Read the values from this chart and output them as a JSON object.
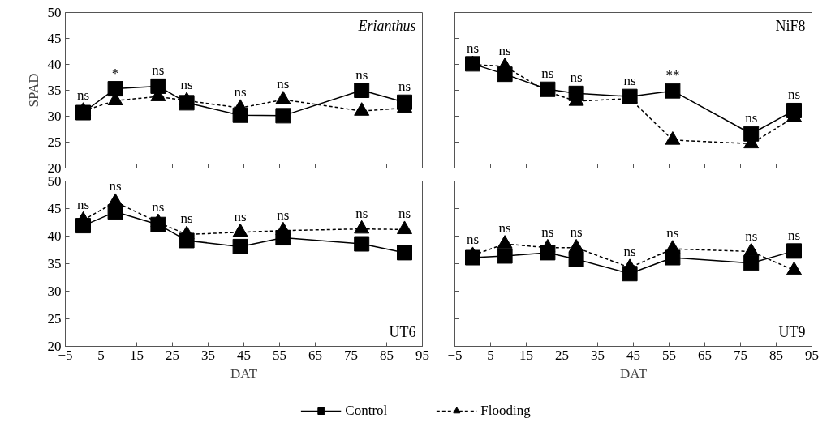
{
  "chart_data": [
    {
      "type": "line",
      "title": "Erianthus",
      "ylabel": "SPAD",
      "xlim": [
        -5,
        95
      ],
      "ylim": [
        20,
        50
      ],
      "xticks": [
        -5,
        5,
        15,
        25,
        35,
        45,
        55,
        65,
        75,
        85,
        95
      ],
      "yticks": [
        20,
        25,
        30,
        35,
        40,
        45,
        50
      ],
      "tick_labels": "y",
      "grid": false,
      "legend": false,
      "x": [
        0,
        9,
        21,
        29,
        44,
        56,
        78,
        90
      ],
      "series": [
        {
          "color": "#000000",
          "marker": "square",
          "line_style": "solid",
          "values": [
            30.7,
            35.3,
            35.8,
            32.6,
            30.2,
            30.1,
            35.0,
            32.7
          ]
        },
        {
          "color": "#000000",
          "marker": "triangle",
          "line_style": "dashed",
          "values": [
            31.0,
            33.0,
            33.8,
            33.0,
            31.6,
            33.2,
            31.0,
            31.6
          ]
        }
      ],
      "annotations": [
        {
          "text": "ns",
          "x": 0,
          "y": 31.0
        },
        {
          "text": "*",
          "x": 9,
          "y": 35.3
        },
        {
          "text": "ns",
          "x": 21,
          "y": 35.8
        },
        {
          "text": "ns",
          "x": 29,
          "y": 33.0
        },
        {
          "text": "ns",
          "x": 44,
          "y": 31.6
        },
        {
          "text": "ns",
          "x": 56,
          "y": 33.2
        },
        {
          "text": "ns",
          "x": 78,
          "y": 35.0
        },
        {
          "text": "ns",
          "x": 90,
          "y": 32.7
        }
      ]
    },
    {
      "type": "line",
      "title": "NiF8",
      "xlim": [
        -5,
        95
      ],
      "ylim": [
        20,
        50
      ],
      "xticks": [
        -5,
        5,
        15,
        25,
        35,
        45,
        55,
        65,
        75,
        85,
        95
      ],
      "yticks": [
        20,
        25,
        30,
        35,
        40,
        45,
        50
      ],
      "tick_labels": false,
      "grid": false,
      "legend": false,
      "x": [
        0,
        9,
        21,
        29,
        44,
        56,
        78,
        90
      ],
      "series": [
        {
          "color": "#000000",
          "marker": "square",
          "line_style": "solid",
          "values": [
            40.1,
            38.1,
            35.2,
            34.4,
            33.8,
            34.9,
            26.6,
            31.1
          ]
        },
        {
          "color": "#000000",
          "marker": "triangle",
          "line_style": "dashed",
          "values": [
            40.0,
            39.6,
            34.7,
            32.9,
            33.4,
            25.4,
            24.7,
            29.8
          ]
        }
      ],
      "annotations": [
        {
          "text": "ns",
          "x": 0,
          "y": 40.1
        },
        {
          "text": "ns",
          "x": 9,
          "y": 39.6
        },
        {
          "text": "ns",
          "x": 21,
          "y": 35.2
        },
        {
          "text": "ns",
          "x": 29,
          "y": 34.4
        },
        {
          "text": "ns",
          "x": 44,
          "y": 33.8
        },
        {
          "text": "**",
          "x": 56,
          "y": 34.9
        },
        {
          "text": "ns",
          "x": 78,
          "y": 26.6
        },
        {
          "text": "ns",
          "x": 90,
          "y": 31.1
        }
      ]
    },
    {
      "type": "line",
      "title": "UT6",
      "xlabel": "DAT",
      "xlim": [
        -5,
        95
      ],
      "ylim": [
        20,
        50
      ],
      "xticks": [
        -5,
        5,
        15,
        25,
        35,
        45,
        55,
        65,
        75,
        85,
        95
      ],
      "yticks": [
        20,
        25,
        30,
        35,
        40,
        45,
        50
      ],
      "grid": false,
      "legend": false,
      "x": [
        0,
        9,
        21,
        29,
        44,
        56,
        78,
        90
      ],
      "series": [
        {
          "color": "#000000",
          "marker": "square",
          "line_style": "solid",
          "values": [
            41.9,
            44.4,
            42.1,
            39.2,
            38.1,
            39.7,
            38.6,
            37.0
          ]
        },
        {
          "color": "#000000",
          "marker": "triangle",
          "line_style": "dashed",
          "values": [
            42.9,
            46.2,
            42.5,
            40.3,
            40.7,
            41.0,
            41.3,
            41.2
          ]
        }
      ],
      "annotations": [
        {
          "text": "ns",
          "x": 0,
          "y": 42.9
        },
        {
          "text": "ns",
          "x": 9,
          "y": 46.2
        },
        {
          "text": "ns",
          "x": 21,
          "y": 42.5
        },
        {
          "text": "ns",
          "x": 29,
          "y": 40.3
        },
        {
          "text": "ns",
          "x": 44,
          "y": 40.7
        },
        {
          "text": "ns",
          "x": 56,
          "y": 41.0
        },
        {
          "text": "ns",
          "x": 78,
          "y": 41.3
        },
        {
          "text": "ns",
          "x": 90,
          "y": 41.2
        }
      ]
    },
    {
      "type": "line",
      "title": "UT9",
      "xlabel": "DAT",
      "xlim": [
        -5,
        95
      ],
      "ylim": [
        20,
        50
      ],
      "xticks": [
        -5,
        5,
        15,
        25,
        35,
        45,
        55,
        65,
        75,
        85,
        95
      ],
      "yticks": [
        20,
        25,
        30,
        35,
        40,
        45,
        50
      ],
      "tick_labels": "x",
      "grid": false,
      "legend": "bottom",
      "x": [
        0,
        9,
        21,
        29,
        44,
        56,
        78,
        90
      ],
      "series": [
        {
          "name": "Control",
          "color": "#000000",
          "marker": "square",
          "line_style": "solid",
          "values": [
            36.1,
            36.4,
            37.0,
            35.8,
            33.2,
            36.1,
            35.1,
            37.3
          ]
        },
        {
          "name": "Flooding",
          "color": "#000000",
          "marker": "triangle",
          "line_style": "dashed",
          "values": [
            36.5,
            38.6,
            37.9,
            37.9,
            34.3,
            37.7,
            37.2,
            33.8
          ]
        }
      ],
      "annotations": [
        {
          "text": "ns",
          "x": 0,
          "y": 36.5
        },
        {
          "text": "ns",
          "x": 9,
          "y": 38.6
        },
        {
          "text": "ns",
          "x": 21,
          "y": 37.9
        },
        {
          "text": "ns",
          "x": 29,
          "y": 37.9
        },
        {
          "text": "ns",
          "x": 44,
          "y": 34.3
        },
        {
          "text": "ns",
          "x": 56,
          "y": 37.7
        },
        {
          "text": "ns",
          "x": 78,
          "y": 37.2
        },
        {
          "text": "ns",
          "x": 90,
          "y": 37.3
        }
      ]
    }
  ]
}
